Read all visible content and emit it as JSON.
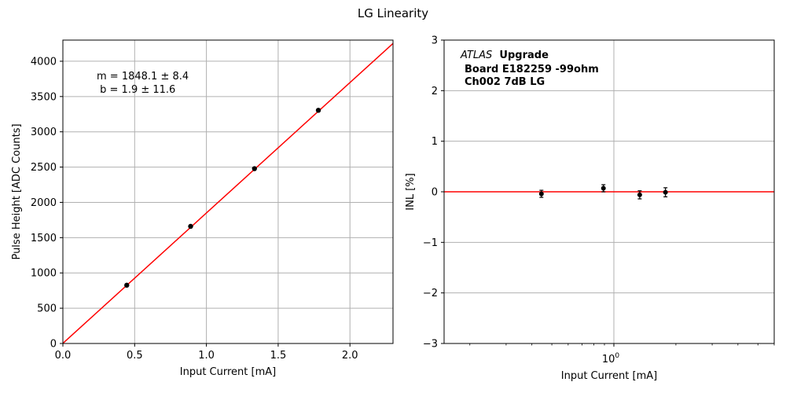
{
  "figure_title": "LG Linearity",
  "chart_data": [
    {
      "type": "scatter",
      "xlabel": "Input Current [mA]",
      "ylabel": "Pulse Height [ADC Counts]",
      "xlim": [
        0.0,
        2.3
      ],
      "ylim": [
        0,
        4300
      ],
      "x_ticks": [
        0.0,
        0.5,
        1.0,
        1.5,
        2.0
      ],
      "x_tick_labels": [
        "0.0",
        "0.5",
        "1.0",
        "1.5",
        "2.0"
      ],
      "y_ticks": [
        0,
        500,
        1000,
        1500,
        2000,
        2500,
        3000,
        3500,
        4000
      ],
      "y_tick_labels": [
        "0",
        "500",
        "1000",
        "1500",
        "2000",
        "2500",
        "3000",
        "3500",
        "4000"
      ],
      "grid": true,
      "points": {
        "x": [
          0.445,
          0.89,
          1.335,
          1.78
        ],
        "y": [
          826,
          1660,
          2478,
          3305
        ],
        "color": "#000000"
      },
      "fit_line": {
        "slope": 1848.1,
        "intercept": 1.9,
        "color": "#ff0000"
      },
      "annotation": [
        "m = 1848.1 ± 8.4",
        " b = 1.9 ± 11.6"
      ]
    },
    {
      "type": "scatter",
      "xscale": "log",
      "xlabel": "Input Current [mA]",
      "ylabel": "INL [%]",
      "xlim": [
        0.15,
        6.0
      ],
      "ylim": [
        -3,
        3
      ],
      "x_ticks": [
        1.0
      ],
      "x_tick_base": "10",
      "x_tick_exp": "0",
      "y_ticks": [
        -3,
        -2,
        -1,
        0,
        1,
        2,
        3
      ],
      "y_tick_labels": [
        "−3",
        "−2",
        "−1",
        "0",
        "1",
        "2",
        "3"
      ],
      "grid": true,
      "points": {
        "x": [
          0.445,
          0.89,
          1.335,
          1.78
        ],
        "y": [
          -0.04,
          0.07,
          -0.06,
          -0.01
        ],
        "yerr": [
          0.07,
          0.07,
          0.08,
          0.09
        ],
        "color": "#000000"
      },
      "reference_line": {
        "y": 0,
        "color": "#ff0000"
      },
      "annotation": {
        "line1_italic": "ATLAS",
        "line1_bold": "Upgrade",
        "line2": "Board E182259 -99ohm",
        "line3": "Ch002 7dB LG"
      }
    }
  ]
}
